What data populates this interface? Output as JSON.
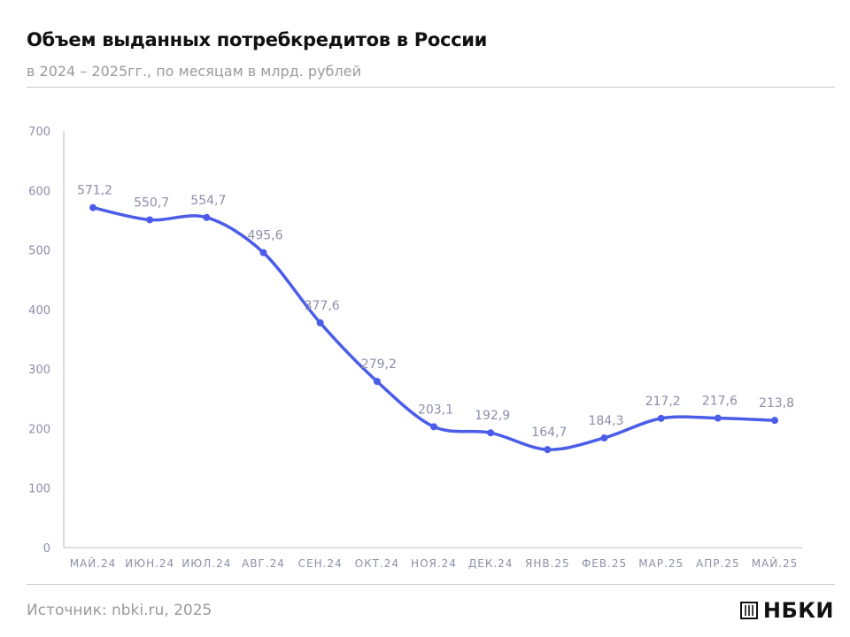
{
  "header": {
    "title": "Объем выданных потребкредитов в России",
    "subtitle": "в 2024 – 2025гг., по месяцам в млрд. рублей"
  },
  "footer": {
    "source": "Источник: nbki.ru, 2025",
    "logo_text": "НБКИ"
  },
  "colors": {
    "line": "#4a5ce8",
    "axis": "#b9bbc9",
    "text_muted": "#8a8fa8"
  },
  "chart_data": {
    "type": "line",
    "title": "Объем выданных потребкредитов в России",
    "categories": [
      "МАЙ.24",
      "ИЮН.24",
      "ИЮЛ.24",
      "АВГ.24",
      "СЕН.24",
      "ОКТ.24",
      "НОЯ.24",
      "ДЕК.24",
      "ЯНВ.25",
      "ФЕВ.25",
      "МАР.25",
      "АПР.25",
      "МАЙ.25"
    ],
    "values": [
      571.2,
      550.7,
      554.7,
      495.6,
      377.6,
      279.2,
      203.1,
      192.9,
      164.7,
      184.3,
      217.2,
      217.6,
      213.8
    ],
    "data_labels": [
      "571,2",
      "550,7",
      "554,7",
      "495,6",
      "377,6",
      "279,2",
      "203,1",
      "192,9",
      "164,7",
      "184,3",
      "217,2",
      "217,6",
      "213,8"
    ],
    "ylim": [
      0,
      700
    ],
    "yticks": [
      0,
      100,
      200,
      300,
      400,
      500,
      600,
      700
    ],
    "grid": false,
    "legend": "none"
  }
}
